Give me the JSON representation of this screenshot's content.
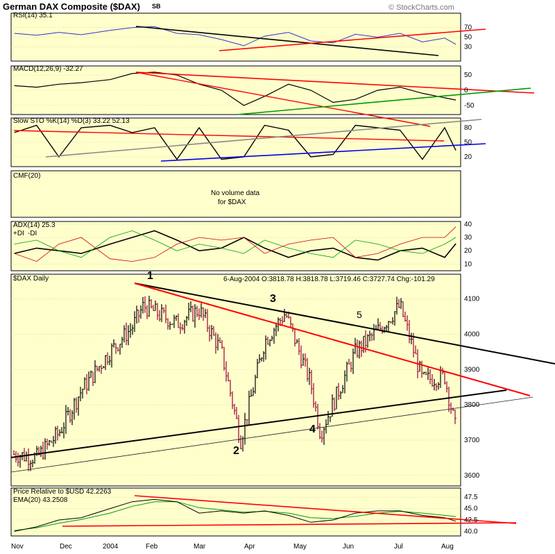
{
  "header": {
    "title": "German DAX Composite ($DAX)",
    "exchange": "SB",
    "copyright": "© StockCharts.com"
  },
  "colors": {
    "panel_bg": "#ffffcc",
    "up_bar": "#000000",
    "down_bar": "#990033",
    "trend_red": "#ff0000",
    "trend_black": "#000000",
    "rsi_line": "#3333cc",
    "grid": "#ffffff"
  },
  "chart_data": [
    {
      "type": "line",
      "panel": "rsi",
      "label": "RSI(14) 35.1",
      "yticks": [
        "70",
        "50",
        "30"
      ],
      "ylim": [
        0,
        100
      ],
      "x": [
        "2003-11-03",
        "2003-11-17",
        "2003-12-01",
        "2003-12-15",
        "2004-01-02",
        "2004-01-16",
        "2004-01-30",
        "2004-02-13",
        "2004-02-27",
        "2004-03-12",
        "2004-03-26",
        "2004-04-08",
        "2004-04-23",
        "2004-05-07",
        "2004-05-21",
        "2004-06-04",
        "2004-06-18",
        "2004-07-02",
        "2004-07-16",
        "2004-07-30",
        "2004-08-06"
      ],
      "values": [
        58,
        54,
        60,
        55,
        64,
        70,
        72,
        58,
        55,
        45,
        32,
        52,
        60,
        42,
        38,
        56,
        50,
        58,
        40,
        48,
        35.1
      ]
    },
    {
      "type": "line",
      "panel": "macd",
      "label": "MACD(12,26,9) -32.27",
      "yticks": [
        "50",
        "0",
        "-50"
      ],
      "ylim": [
        -80,
        80
      ],
      "x": [
        "2003-11-03",
        "2003-11-17",
        "2003-12-01",
        "2003-12-15",
        "2004-01-02",
        "2004-01-16",
        "2004-01-30",
        "2004-02-13",
        "2004-02-27",
        "2004-03-12",
        "2004-03-26",
        "2004-04-08",
        "2004-04-23",
        "2004-05-07",
        "2004-05-21",
        "2004-06-04",
        "2004-06-18",
        "2004-07-02",
        "2004-07-16",
        "2004-07-30",
        "2004-08-06"
      ],
      "values": [
        15,
        10,
        20,
        25,
        35,
        55,
        60,
        50,
        20,
        0,
        -50,
        -20,
        20,
        0,
        -40,
        -30,
        0,
        10,
        -10,
        -25,
        -32.27
      ]
    },
    {
      "type": "line",
      "panel": "stoch",
      "label": "Slow STO %K(14) %D(3) 33.22 52.13",
      "yticks": [
        "80",
        "50",
        "20"
      ],
      "ylim": [
        0,
        100
      ],
      "x": [
        "2003-11-03",
        "2003-11-17",
        "2003-12-01",
        "2003-12-15",
        "2004-01-02",
        "2004-01-16",
        "2004-01-30",
        "2004-02-13",
        "2004-02-27",
        "2004-03-12",
        "2004-03-26",
        "2004-04-08",
        "2004-04-23",
        "2004-05-07",
        "2004-05-21",
        "2004-06-04",
        "2004-06-18",
        "2004-07-02",
        "2004-07-16",
        "2004-07-30",
        "2004-08-06"
      ],
      "values": [
        70,
        85,
        20,
        80,
        85,
        70,
        80,
        15,
        80,
        15,
        20,
        85,
        75,
        20,
        25,
        85,
        80,
        75,
        15,
        80,
        33.22
      ]
    },
    {
      "type": "line",
      "panel": "cmf",
      "label": "CMF(20)",
      "note": "No volume data",
      "note2": "for $DAX"
    },
    {
      "type": "line",
      "panel": "adx",
      "label": "ADX(14) 25.3",
      "plus_di": "+DI",
      "minus_di": "-DI",
      "yticks": [
        "40",
        "30",
        "20",
        "10"
      ],
      "ylim": [
        5,
        42
      ],
      "x": [
        "2003-11-03",
        "2003-11-17",
        "2003-12-01",
        "2003-12-15",
        "2004-01-02",
        "2004-01-16",
        "2004-01-30",
        "2004-02-13",
        "2004-02-27",
        "2004-03-12",
        "2004-03-26",
        "2004-04-08",
        "2004-04-23",
        "2004-05-07",
        "2004-05-21",
        "2004-06-04",
        "2004-06-18",
        "2004-07-02",
        "2004-07-16",
        "2004-07-30",
        "2004-08-06"
      ],
      "series": [
        {
          "values": [
            18,
            22,
            20,
            18,
            25,
            30,
            35,
            28,
            20,
            22,
            30,
            22,
            15,
            20,
            22,
            15,
            13,
            20,
            22,
            15,
            25.3
          ]
        },
        {
          "values": [
            25,
            28,
            20,
            15,
            30,
            35,
            28,
            20,
            25,
            22,
            18,
            28,
            22,
            18,
            15,
            28,
            25,
            20,
            18,
            25,
            30
          ]
        },
        {
          "values": [
            18,
            12,
            25,
            30,
            14,
            12,
            15,
            25,
            30,
            28,
            30,
            18,
            25,
            28,
            30,
            15,
            18,
            25,
            30,
            30,
            38
          ]
        }
      ]
    },
    {
      "type": "bar",
      "panel": "price",
      "label": "$DAX Daily",
      "ohlc_readout": "6-Aug-2004  O:3818.78  H:3818.78  L:3719.46  C:3727.74  Chg:-101.29",
      "yticks": [
        "4100",
        "4000",
        "3900",
        "3800",
        "3700",
        "3600"
      ],
      "ylim": [
        3570,
        4170
      ],
      "x": [
        "2003-11-03",
        "2003-11-17",
        "2003-12-01",
        "2003-12-15",
        "2004-01-02",
        "2004-01-16",
        "2004-01-23",
        "2004-02-13",
        "2004-02-27",
        "2004-03-12",
        "2004-03-24",
        "2004-04-08",
        "2004-04-21",
        "2004-05-07",
        "2004-05-13",
        "2004-06-04",
        "2004-06-18",
        "2004-07-02",
        "2004-07-16",
        "2004-07-30",
        "2004-08-06"
      ],
      "values": [
        3660,
        3650,
        3720,
        3840,
        3950,
        4020,
        4080,
        4030,
        4070,
        3950,
        3700,
        3980,
        4060,
        3860,
        3720,
        3950,
        4010,
        4080,
        3870,
        3880,
        3727.74
      ],
      "wave_labels": [
        "1",
        "2",
        "3",
        "4",
        "5"
      ]
    },
    {
      "type": "line",
      "panel": "relative",
      "label": "Price Relative to $USD  42.2263",
      "ema_label": "EMA(20) 43.2508",
      "yticks": [
        "47.5",
        "45.0",
        "42.5",
        "40.0"
      ],
      "ylim": [
        39,
        49.5
      ],
      "x": [
        "2003-11-03",
        "2003-11-17",
        "2003-12-01",
        "2003-12-15",
        "2004-01-02",
        "2004-01-16",
        "2004-01-30",
        "2004-02-13",
        "2004-02-27",
        "2004-03-12",
        "2004-03-26",
        "2004-04-08",
        "2004-04-23",
        "2004-05-07",
        "2004-05-21",
        "2004-06-04",
        "2004-06-18",
        "2004-07-02",
        "2004-07-16",
        "2004-07-30",
        "2004-08-06"
      ],
      "values": [
        40,
        41,
        42.5,
        43,
        45,
        46.5,
        47,
        46.5,
        44,
        44.5,
        44,
        44.5,
        43.5,
        42,
        42.5,
        44,
        44.5,
        44.5,
        43.5,
        43,
        42.2263
      ],
      "ema": [
        40.2,
        40.8,
        41.8,
        42.6,
        44,
        45.5,
        46.5,
        46.5,
        45.2,
        44.7,
        44.2,
        44.4,
        44,
        43,
        42.8,
        43.3,
        44,
        44.4,
        44,
        43.5,
        43.2508
      ]
    }
  ],
  "x_axis": {
    "labels": [
      "Nov",
      "Dec",
      "2004",
      "Feb",
      "Mar",
      "Apr",
      "May",
      "Jun",
      "Jul",
      "Aug"
    ]
  }
}
